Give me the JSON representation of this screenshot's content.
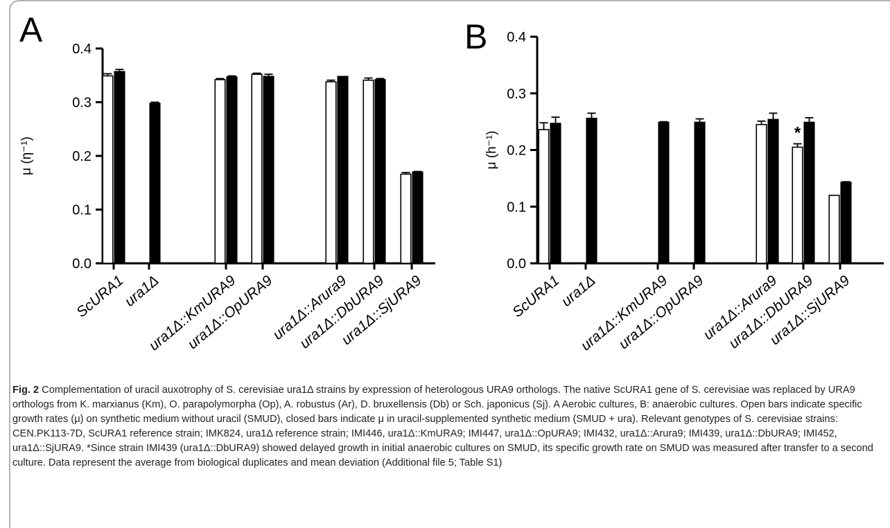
{
  "chart_data": [
    {
      "panel": "A",
      "type": "bar",
      "ylabel": "μ (η⁻¹)",
      "ylim": [
        0,
        0.4
      ],
      "yticks": [
        "0.0",
        "0.1",
        "0.2",
        "0.3",
        "0.4"
      ],
      "categories": [
        "ScURA1",
        "ura1Δ",
        "ura1Δ::KmURA9",
        "ura1Δ::OpURA9",
        "ura1Δ::Arura9",
        "ura1Δ::DbURA9",
        "ura1Δ::SjURA9"
      ],
      "series": [
        {
          "fill": "open",
          "values": [
            0.349,
            0,
            0.342,
            0.352,
            0.338,
            0.341,
            0.166
          ],
          "errors": [
            0.004,
            0,
            0.002,
            0.002,
            0.003,
            0.004,
            0.003
          ]
        },
        {
          "fill": "closed",
          "values": [
            0.357,
            0.298,
            0.347,
            0.348,
            0.348,
            0.342,
            0.17
          ],
          "errors": [
            0.004,
            0.002,
            0.002,
            0.004,
            0,
            0.002,
            0.001
          ]
        }
      ]
    },
    {
      "panel": "B",
      "type": "bar",
      "ylabel": "μ (h⁻¹)",
      "ylim": [
        0,
        0.4
      ],
      "yticks": [
        "0.0",
        "0.1",
        "0.2",
        "0.3",
        "0.4"
      ],
      "categories": [
        "ScURA1",
        "ura1Δ",
        "ura1Δ::KmURA9",
        "ura1Δ::OpURA9",
        "ura1Δ::Arura9",
        "ura1Δ::DbURA9",
        "ura1Δ::SjURA9"
      ],
      "annotation": "*",
      "series": [
        {
          "fill": "open",
          "values": [
            0.236,
            0,
            0,
            0,
            0.245,
            0.205,
            0.12
          ],
          "errors": [
            0.012,
            0,
            0,
            0,
            0.006,
            0.006,
            0
          ]
        },
        {
          "fill": "closed",
          "values": [
            0.247,
            0.256,
            0.249,
            0.249,
            0.254,
            0.249,
            0.143
          ],
          "errors": [
            0.011,
            0.009,
            0.001,
            0.006,
            0.011,
            0.008,
            0.001
          ]
        }
      ]
    }
  ],
  "caption": {
    "fig_label": "Fig. 2",
    "text": " Complementation of uracil auxotrophy of S. cerevisiae ura1Δ strains by expression of heterologous URA9 orthologs. The native ScURA1 gene of S. cerevisiae was replaced by URA9 orthologs from K. marxianus (Km), O. parapolymorpha (Op), A. robustus (Ar), D. bruxellensis (Db) or Sch. japonicus (Sj). A Aerobic cultures, B: anaerobic cultures. Open bars indicate specific growth rates (μ) on synthetic medium without uracil (SMUD), closed bars indicate μ in uracil-supplemented synthetic medium (SMUD + ura). Relevant genotypes of S. cerevisiae strains: CEN.PK113-7D, ScURA1 reference strain; IMK824, ura1Δ reference strain; IMI446, ura1Δ::KmURA9; IMI447, ura1Δ::OpURA9; IMI432, ura1Δ::Arura9; IMI439, ura1Δ::DbURA9; IMI452, ura1Δ::SjURA9. *Since strain IMI439 (ura1Δ::DbURA9) showed delayed growth in initial anaerobic cultures on SMUD, its specific growth rate on SMUD was measured after transfer to a second culture. Data represent the average from biological duplicates and mean deviation (Additional file 5; Table S1)"
  }
}
